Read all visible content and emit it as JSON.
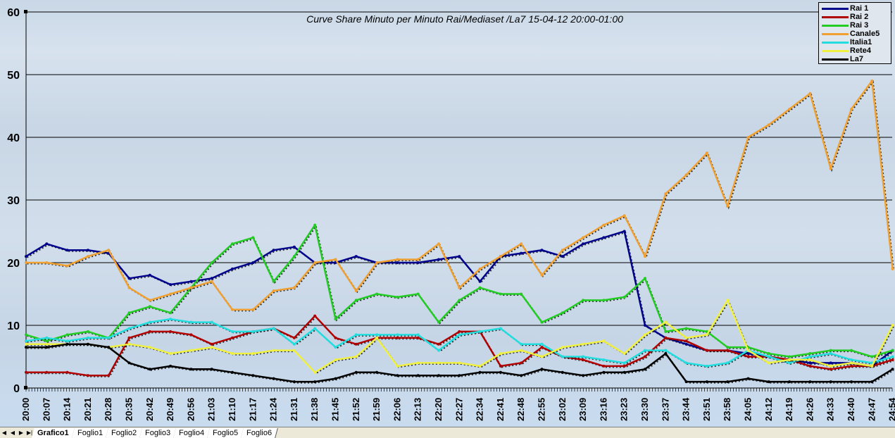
{
  "chart_data": {
    "type": "line",
    "title": "Curve Share Minuto per Minuto Rai/Mediaset /La7 15-04-12 20:00-01:00",
    "xlabel": "",
    "ylabel": "",
    "ylim": [
      0,
      60
    ],
    "yticks": [
      0,
      10,
      20,
      30,
      40,
      50,
      60
    ],
    "grid": true,
    "legend_position": "top-right",
    "categories": [
      "20:00",
      "20:07",
      "20:14",
      "20:21",
      "20:28",
      "20:35",
      "20:42",
      "20:49",
      "20:56",
      "21:03",
      "21:10",
      "21:17",
      "21:24",
      "21:31",
      "21:38",
      "21:45",
      "21:52",
      "21:59",
      "22:06",
      "22:13",
      "22:20",
      "22:27",
      "22:34",
      "22:41",
      "22:48",
      "22:55",
      "23:02",
      "23:09",
      "23:16",
      "23:23",
      "23:30",
      "23:37",
      "23:44",
      "23:51",
      "23:58",
      "24:05",
      "24:12",
      "24:19",
      "24:26",
      "24:33",
      "24:40",
      "24:47",
      "24:54"
    ],
    "series": [
      {
        "name": "Rai 1",
        "color": "#00008b",
        "values": [
          21,
          23,
          22,
          22,
          21.5,
          17.5,
          18,
          16.5,
          17,
          17.5,
          19,
          20,
          22,
          22.5,
          20,
          20,
          21,
          20,
          20,
          20,
          20.5,
          21,
          17,
          21,
          21.5,
          22,
          21,
          23,
          24,
          25,
          10,
          8,
          7,
          6,
          6,
          5.5,
          5,
          4.5,
          4,
          4,
          4,
          3.5,
          6
        ]
      },
      {
        "name": "Rai 2",
        "color": "#b00000",
        "values": [
          2.5,
          2.5,
          2.5,
          2,
          2,
          8,
          9,
          9,
          8.5,
          7,
          8,
          9,
          9.5,
          8,
          11.5,
          8,
          7,
          8,
          8,
          8,
          7,
          9,
          9,
          3.5,
          4,
          6.5,
          5,
          4.5,
          3.5,
          3.5,
          5,
          8,
          7.5,
          6,
          6,
          5,
          5,
          4.5,
          3.5,
          3,
          3.5,
          3.5,
          4.5
        ]
      },
      {
        "name": "Rai 3",
        "color": "#22cc22",
        "values": [
          8.5,
          7.5,
          8.5,
          9,
          8,
          12,
          13,
          12,
          16,
          20,
          23,
          24,
          17,
          21,
          26,
          11,
          14,
          15,
          14.5,
          15,
          10.5,
          14,
          16,
          15,
          15,
          10.5,
          12,
          14,
          14,
          14.5,
          17.5,
          9,
          9.5,
          9,
          6.5,
          6.5,
          5.5,
          5,
          5.5,
          6,
          6,
          5,
          6
        ]
      },
      {
        "name": "Canale5",
        "color": "#f0a030",
        "values": [
          20,
          20,
          19.5,
          21,
          22,
          16,
          14,
          15,
          16,
          17,
          12.5,
          12.5,
          15.5,
          16,
          20,
          20.5,
          15.5,
          20,
          20.5,
          20.5,
          23,
          16,
          19,
          21,
          23,
          18,
          22,
          24,
          26,
          27.5,
          21,
          31,
          34,
          37.5,
          29,
          40,
          42,
          44.5,
          47,
          35,
          44.5,
          49,
          19
        ]
      },
      {
        "name": "Italia1",
        "color": "#22dddd",
        "values": [
          7.5,
          8,
          7.5,
          8,
          8,
          9.5,
          10.5,
          11,
          10.5,
          10.5,
          9,
          9,
          9.5,
          7,
          9.5,
          6.5,
          8.5,
          8.5,
          8.5,
          8.5,
          6,
          8.5,
          9,
          9.5,
          7,
          7,
          5,
          5,
          4.5,
          4,
          6,
          6,
          4,
          3.5,
          4,
          6,
          5,
          4,
          5,
          5.5,
          4.5,
          4,
          5
        ]
      },
      {
        "name": "Rete4",
        "color": "#f0f040",
        "values": [
          7,
          7,
          7,
          7,
          6.5,
          7,
          6.5,
          5.5,
          6,
          6.5,
          5.5,
          5.5,
          6,
          6,
          2.5,
          4.5,
          5,
          8,
          3.5,
          4,
          4,
          4,
          3.5,
          5.5,
          6,
          5,
          6.5,
          7,
          7.5,
          5.5,
          8.5,
          10.5,
          8,
          8.5,
          14,
          6,
          4,
          4.5,
          4.5,
          3.5,
          4,
          3.5,
          10
        ]
      },
      {
        "name": "La7",
        "color": "#000000",
        "values": [
          6.5,
          6.5,
          7,
          7,
          6.5,
          4,
          3,
          3.5,
          3,
          3,
          2.5,
          2,
          1.5,
          1,
          1,
          1.5,
          2.5,
          2.5,
          2,
          2,
          2,
          2,
          2.5,
          2.5,
          2,
          3,
          2.5,
          2,
          2.5,
          2.5,
          3,
          5.5,
          1,
          1,
          1,
          1.5,
          1,
          1,
          1,
          1,
          1,
          1,
          3
        ]
      }
    ]
  },
  "legend": {
    "items": [
      {
        "label": "Rai 1",
        "color": "#00008b"
      },
      {
        "label": "Rai 2",
        "color": "#b00000"
      },
      {
        "label": "Rai 3",
        "color": "#22cc22"
      },
      {
        "label": "Canale5",
        "color": "#f0a030"
      },
      {
        "label": "Italia1",
        "color": "#22dddd"
      },
      {
        "label": "Rete4",
        "color": "#f0f040"
      },
      {
        "label": "La7",
        "color": "#000000"
      }
    ]
  },
  "sheet_tabs": {
    "nav": [
      "first-sheet",
      "prev-sheet",
      "next-sheet",
      "last-sheet"
    ],
    "tabs": [
      "Grafico1",
      "Foglio1",
      "Foglio2",
      "Foglio3",
      "Foglio4",
      "Foglio5",
      "Foglio6"
    ],
    "active": "Grafico1"
  }
}
